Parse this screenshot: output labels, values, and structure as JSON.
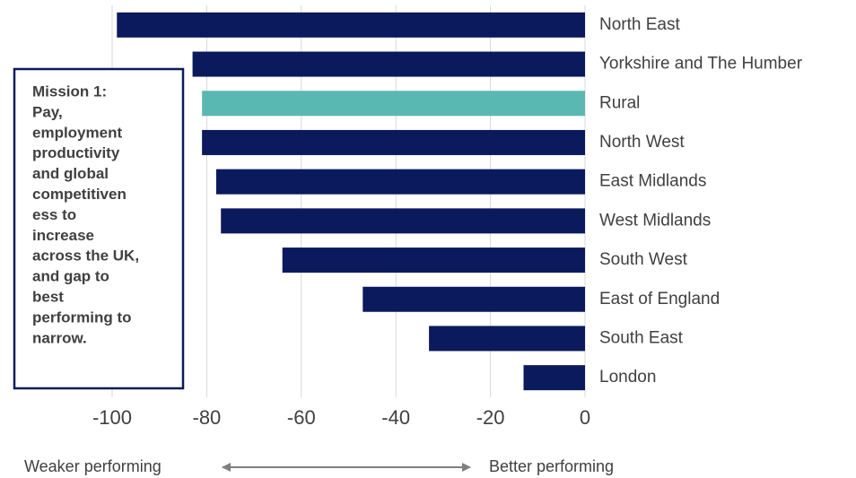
{
  "chart_data": {
    "type": "barh",
    "categories": [
      "North East",
      "Yorkshire and The Humber",
      "Rural",
      "North West",
      "East Midlands",
      "West Midlands",
      "South West",
      "East of England",
      "South East",
      "London"
    ],
    "values": [
      -99,
      -83,
      -81,
      -81,
      -78,
      -77,
      -64,
      -47,
      -33,
      -13
    ],
    "colors": [
      "#0b1a5c",
      "#0b1a5c",
      "#5ab8b3",
      "#0b1a5c",
      "#0b1a5c",
      "#0b1a5c",
      "#0b1a5c",
      "#0b1a5c",
      "#0b1a5c",
      "#0b1a5c"
    ],
    "xlim": [
      -100,
      0
    ],
    "xticks": [
      -100,
      -80,
      -60,
      -40,
      -20,
      0
    ],
    "grid": true,
    "annotation": [
      "Mission 1:",
      "Pay,",
      "employment",
      "productivity",
      "and global",
      "competitiven",
      "ess to",
      "increase",
      "across the UK,",
      "and gap to",
      "best",
      "performing to",
      "narrow."
    ],
    "axis_left_label": "Weaker performing",
    "axis_right_label": "Better performing"
  }
}
